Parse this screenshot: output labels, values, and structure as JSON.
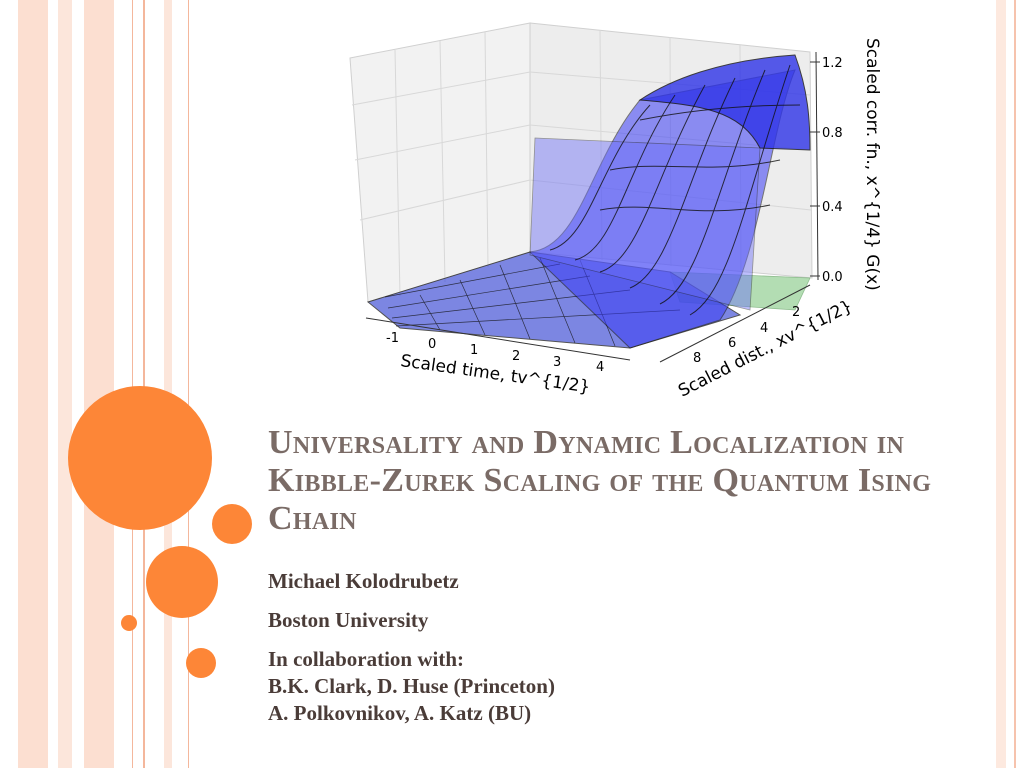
{
  "slide": {
    "title": "Universality and Dynamic Localization in Kibble-Zurek Scaling of the Quantum Ising Chain",
    "author": "Michael Kolodrubetz",
    "affiliation": "Boston University",
    "collab_heading": "In collaboration with:",
    "collab_line1": "B.K. Clark, D. Huse (Princeton)",
    "collab_line2": "A. Polkovnikov, A. Katz (BU)"
  },
  "figure": {
    "z_axis_label": "Scaled corr. fn., x^{1/4} G(x)",
    "x_axis_label": "Scaled time, tv^{1/2}",
    "y_axis_label": "Scaled dist., xv^{1/2}",
    "z_ticks": [
      "1.2",
      "0.8",
      "0.4",
      "0.0"
    ],
    "x_ticks": [
      "-1",
      "0",
      "1",
      "2",
      "3",
      "4"
    ],
    "y_ticks": [
      "2",
      "4",
      "6",
      "8"
    ]
  },
  "colors": {
    "accent_orange": "#fd8637",
    "stripe_pink": "#fbd9cb",
    "title_gray": "#7a6b66",
    "surface_blue": "#3a3cf5",
    "floor_green": "#9ad29a"
  }
}
